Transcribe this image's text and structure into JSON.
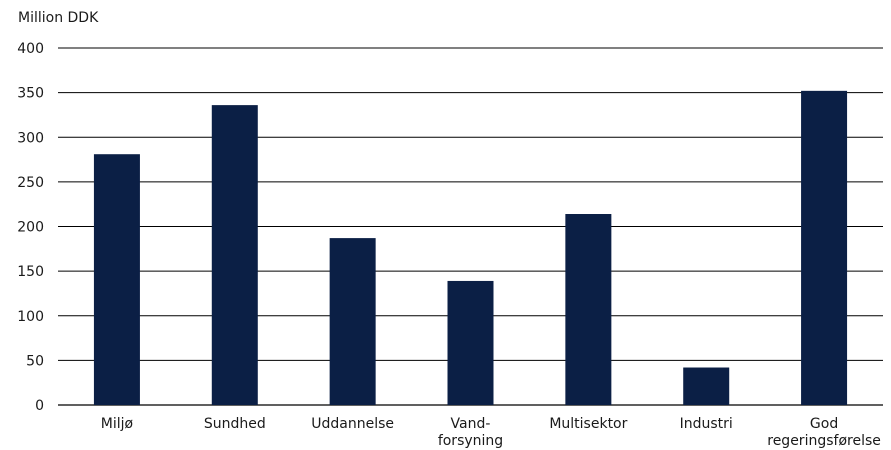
{
  "chart_data": {
    "type": "bar",
    "ylabel": "Million DDK",
    "categories": [
      [
        "Miljø"
      ],
      [
        "Sundhed"
      ],
      [
        "Uddannelse"
      ],
      [
        "Vand-",
        "forsyning"
      ],
      [
        "Multisektor"
      ],
      [
        "Industri"
      ],
      [
        "God",
        "regeringsførelse"
      ]
    ],
    "values": [
      281,
      336,
      187,
      139,
      214,
      42,
      352
    ],
    "ylim": [
      0,
      400
    ],
    "yticks": [
      0,
      50,
      100,
      150,
      200,
      250,
      300,
      350,
      400
    ],
    "grid": true,
    "colors": {
      "bar": "#0b1f45",
      "grid": "#000000"
    }
  }
}
